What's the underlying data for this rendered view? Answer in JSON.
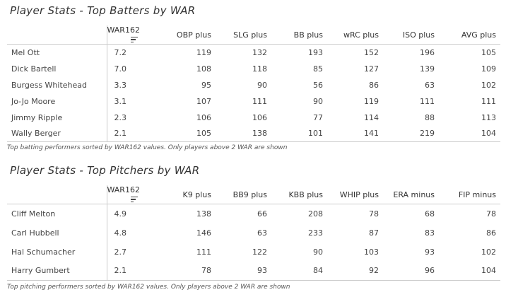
{
  "batters": {
    "title": "Player Stats - Top Batters by WAR",
    "columns": [
      "",
      "WAR162",
      "OBP plus",
      "SLG plus",
      "BB plus",
      "wRC plus",
      "ISO plus",
      "AVG plus"
    ],
    "rows": [
      [
        "Mel Ott",
        "7.2",
        "119",
        "132",
        "193",
        "152",
        "196",
        "105"
      ],
      [
        "Dick Bartell",
        "7.0",
        "108",
        "118",
        "85",
        "127",
        "139",
        "109"
      ],
      [
        "Burgess Whitehead",
        "3.3",
        "95",
        "90",
        "56",
        "86",
        "63",
        "102"
      ],
      [
        "Jo-Jo Moore",
        "3.1",
        "107",
        "111",
        "90",
        "119",
        "111",
        "111"
      ],
      [
        "Jimmy Ripple",
        "2.3",
        "106",
        "106",
        "77",
        "114",
        "88",
        "113"
      ],
      [
        "Wally Berger",
        "2.1",
        "105",
        "138",
        "101",
        "141",
        "219",
        "104"
      ]
    ],
    "caption": "Top batting performers sorted by WAR162 values. Only players above 2 WAR are shown"
  },
  "pitchers": {
    "title": "Player Stats - Top Pitchers by WAR",
    "columns": [
      "",
      "WAR162",
      "K9 plus",
      "BB9 plus",
      "KBB plus",
      "WHIP plus",
      "ERA minus",
      "FIP minus"
    ],
    "rows": [
      [
        "Cliff Melton",
        "4.9",
        "138",
        "66",
        "208",
        "78",
        "68",
        "78"
      ],
      [
        "Carl Hubbell",
        "4.8",
        "146",
        "63",
        "233",
        "87",
        "83",
        "86"
      ],
      [
        "Hal Schumacher",
        "2.7",
        "111",
        "122",
        "90",
        "103",
        "93",
        "102"
      ],
      [
        "Harry Gumbert",
        "2.1",
        "78",
        "93",
        "84",
        "92",
        "96",
        "104"
      ]
    ],
    "caption": "Top pitching performers sorted by WAR162 values. Only players above 2 WAR are shown"
  }
}
